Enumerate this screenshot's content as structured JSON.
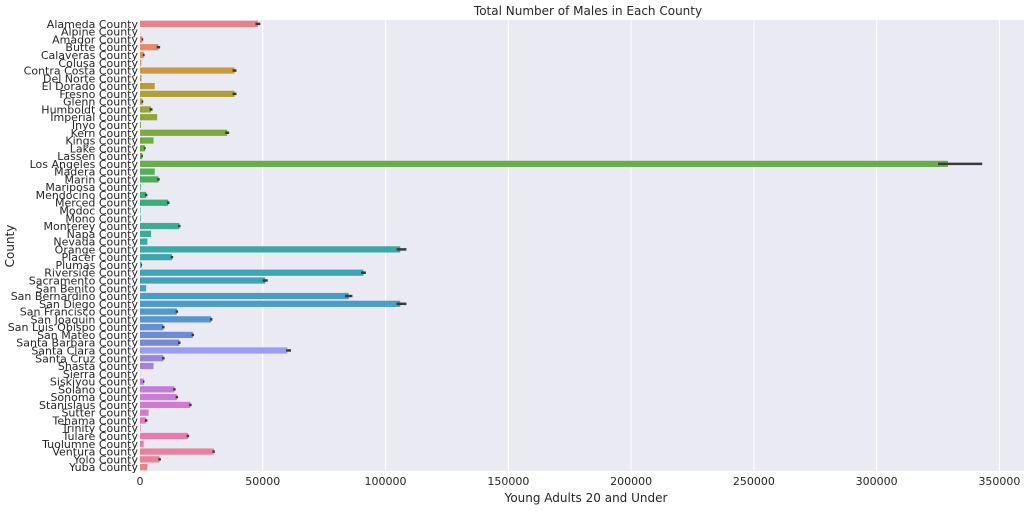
{
  "chart_data": {
    "type": "bar",
    "orientation": "horizontal",
    "title": "Total Number of Males in Each County",
    "xlabel": "Young Adults 20 and Under",
    "ylabel": "County",
    "xlim": [
      0,
      360000
    ],
    "x_ticks": [
      0,
      50000,
      100000,
      150000,
      200000,
      250000,
      300000,
      350000
    ],
    "grid": true,
    "background": "#eaeaf2",
    "errorbar_color": "#3a3a3a",
    "categories": [
      "Alameda County",
      "Alpine County",
      "Amador County",
      "Butte County",
      "Calaveras County",
      "Colusa County",
      "Contra Costa County",
      "Del Norte County",
      "El Dorado County",
      "Fresno County",
      "Glenn County",
      "Humboldt County",
      "Imperial County",
      "Inyo County",
      "Kern County",
      "Kings County",
      "Lake County",
      "Lassen County",
      "Los Angeles County",
      "Madera County",
      "Marin County",
      "Mariposa County",
      "Mendocino County",
      "Merced County",
      "Modoc County",
      "Mono County",
      "Monterey County",
      "Napa County",
      "Nevada County",
      "Orange County",
      "Placer County",
      "Plumas County",
      "Riverside County",
      "Sacramento County",
      "San Benito County",
      "San Bernardino County",
      "San Diego County",
      "San Francisco County",
      "San Joaquin County",
      "San Luis Obispo County",
      "San Mateo County",
      "Santa Barbara County",
      "Santa Clara County",
      "Santa Cruz County",
      "Shasta County",
      "Sierra County",
      "Siskiyou County",
      "Solano County",
      "Sonoma County",
      "Stanislaus County",
      "Sutter County",
      "Tehama County",
      "Trinity County",
      "Tulare County",
      "Tuolumne County",
      "Ventura County",
      "Yolo County",
      "Yuba County"
    ],
    "values": [
      48000,
      100,
      1000,
      7500,
      1500,
      500,
      38500,
      600,
      6000,
      38500,
      1000,
      4500,
      7000,
      400,
      35500,
      5500,
      2000,
      900,
      329000,
      6000,
      7500,
      300,
      2500,
      11500,
      200,
      300,
      16000,
      4500,
      3000,
      106000,
      13000,
      600,
      91000,
      51000,
      2500,
      85000,
      106000,
      15000,
      29000,
      9500,
      21500,
      16000,
      60000,
      9500,
      5500,
      100,
      1500,
      14000,
      15000,
      20500,
      3500,
      2500,
      300,
      19500,
      1500,
      30000,
      8000,
      3000
    ],
    "error_low": [
      47000,
      0,
      700,
      6800,
      1100,
      0,
      37700,
      0,
      0,
      37700,
      700,
      3900,
      0,
      0,
      34700,
      0,
      1700,
      600,
      325000,
      0,
      7000,
      0,
      2000,
      11000,
      0,
      0,
      15500,
      0,
      0,
      104500,
      12500,
      400,
      90000,
      50000,
      0,
      83500,
      104500,
      14500,
      28500,
      9000,
      21000,
      15500,
      59500,
      9000,
      0,
      0,
      1200,
      13500,
      14500,
      20000,
      0,
      2000,
      0,
      19000,
      0,
      29500,
      7500,
      0
    ],
    "error_high": [
      49000,
      0,
      1300,
      8200,
      1900,
      0,
      39300,
      0,
      0,
      39300,
      1300,
      5100,
      0,
      0,
      36300,
      0,
      2300,
      1200,
      343000,
      0,
      8000,
      0,
      3000,
      12000,
      0,
      0,
      16500,
      0,
      0,
      108500,
      13500,
      800,
      92000,
      52000,
      0,
      86500,
      108500,
      15500,
      29500,
      10000,
      22000,
      16500,
      61500,
      10000,
      0,
      0,
      1800,
      14500,
      15500,
      21000,
      0,
      3000,
      0,
      20000,
      0,
      30500,
      8500,
      0
    ],
    "colors": [
      "#e8828a",
      "#e8868a",
      "#e88b7c",
      "#e48c6a",
      "#de925c",
      "#d49a4a",
      "#c99a40",
      "#c09c3a",
      "#b89e3a",
      "#b0a03a",
      "#a4a23a",
      "#9aa43a",
      "#8fa63c",
      "#86a83e",
      "#7ca940",
      "#70aa42",
      "#64ab45",
      "#58ac48",
      "#6aac4c",
      "#54ad58",
      "#4aae5e",
      "#44ae66",
      "#40ae6e",
      "#3eae78",
      "#3cae82",
      "#3cad8a",
      "#3cac92",
      "#3cab9a",
      "#3caaa0",
      "#3ca9a6",
      "#3ca8ac",
      "#3ca6b2",
      "#3ea4b6",
      "#40a2ba",
      "#44a0be",
      "#489ec2",
      "#4c9cc6",
      "#5298ca",
      "#5a94ce",
      "#6290d2",
      "#6c8cd4",
      "#7888d6",
      "#9a9ef0",
      "#9a86d8",
      "#a484d8",
      "#ae82d8",
      "#b880d8",
      "#c27ed6",
      "#ca7cd4",
      "#d27ad0",
      "#d87ac8",
      "#de7ac0",
      "#e27ab8",
      "#e47cb0",
      "#e67ea8",
      "#e880a0",
      "#e88298",
      "#e88490"
    ]
  }
}
